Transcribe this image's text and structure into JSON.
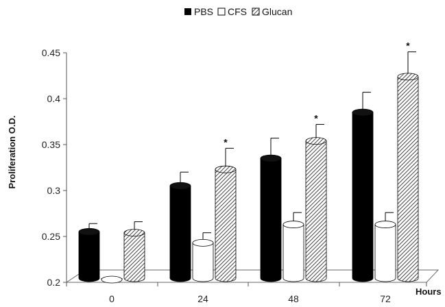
{
  "chart_data": {
    "type": "bar",
    "title": "",
    "xlabel": "Hours",
    "ylabel": "Proliferation O.D.",
    "ylim": [
      0.2,
      0.45
    ],
    "yticks": [
      0.2,
      0.25,
      0.3,
      0.35,
      0.4,
      0.45
    ],
    "categories": [
      "0",
      "24",
      "48",
      "72"
    ],
    "legend_position": "top-center",
    "series": [
      {
        "name": "PBS",
        "fill": "solid",
        "color": "#000000",
        "values": [
          0.255,
          0.305,
          0.335,
          0.385
        ],
        "errors": [
          0.009,
          0.015,
          0.022,
          0.022
        ],
        "significant": [
          false,
          false,
          false,
          false
        ]
      },
      {
        "name": "CFS",
        "fill": "white",
        "color": "#ffffff",
        "values": [
          0.203,
          0.243,
          0.263,
          0.263
        ],
        "errors": [
          0.0,
          0.011,
          0.013,
          0.013
        ],
        "significant": [
          false,
          false,
          false,
          false
        ]
      },
      {
        "name": "Glucan",
        "fill": "hatched",
        "color": "#888888",
        "values": [
          0.254,
          0.323,
          0.354,
          0.424
        ],
        "errors": [
          0.012,
          0.023,
          0.018,
          0.027
        ],
        "significant": [
          false,
          true,
          true,
          true
        ]
      }
    ],
    "annotations": {
      "significance_marker": "*"
    }
  }
}
